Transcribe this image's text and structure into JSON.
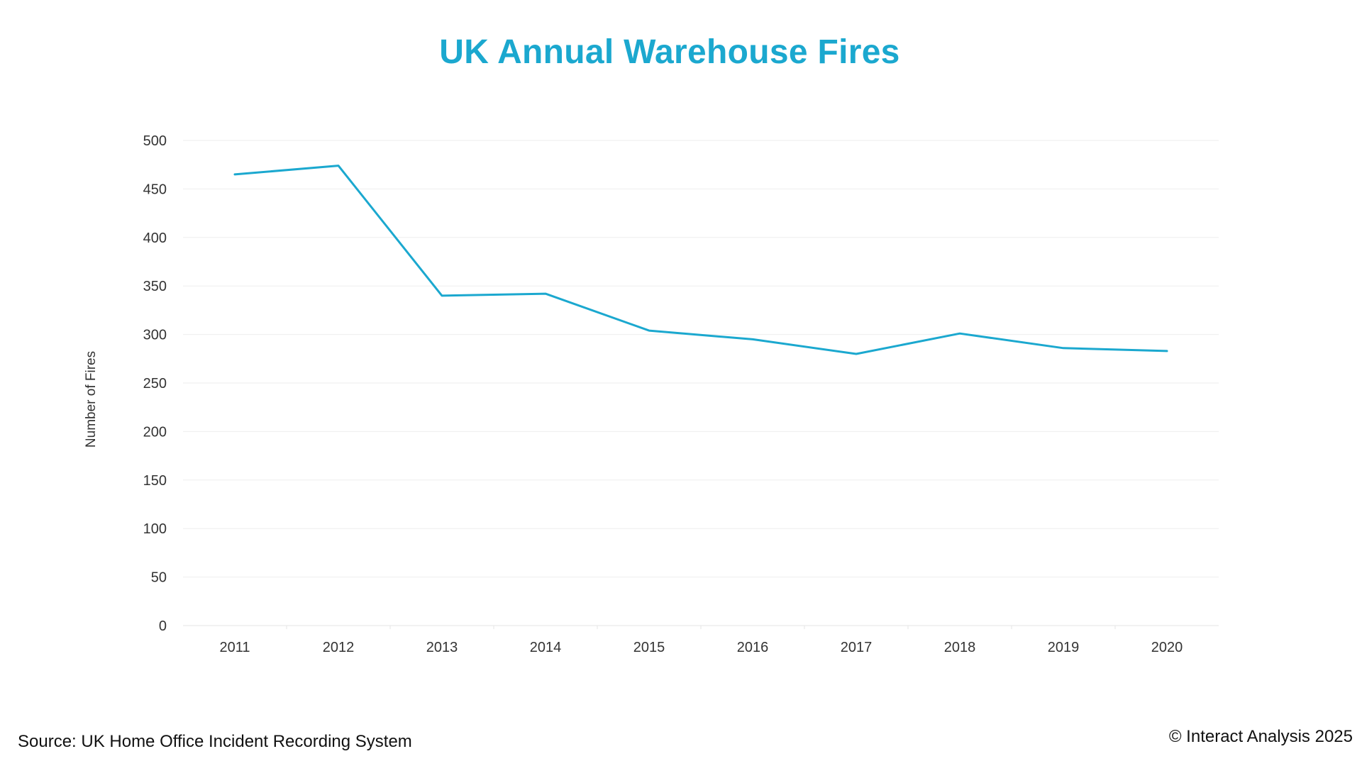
{
  "chart_data": {
    "type": "line",
    "title": "UK Annual Warehouse Fires",
    "xlabel": "",
    "ylabel": "Number of Fires",
    "categories": [
      "2011",
      "2012",
      "2013",
      "2014",
      "2015",
      "2016",
      "2017",
      "2018",
      "2019",
      "2020"
    ],
    "series": [
      {
        "values": [
          465,
          474,
          340,
          342,
          304,
          295,
          280,
          301,
          286,
          283
        ],
        "color": "#1ba8cf"
      }
    ],
    "ylim": [
      0,
      500
    ],
    "yticks": [
      "0",
      "50",
      "100",
      "150",
      "200",
      "250",
      "300",
      "350",
      "400",
      "450",
      "500"
    ],
    "grid": true,
    "legend": "none"
  },
  "footer": {
    "source": "Source: UK Home Office Incident Recording System",
    "copyright": "© Interact Analysis 2025"
  }
}
